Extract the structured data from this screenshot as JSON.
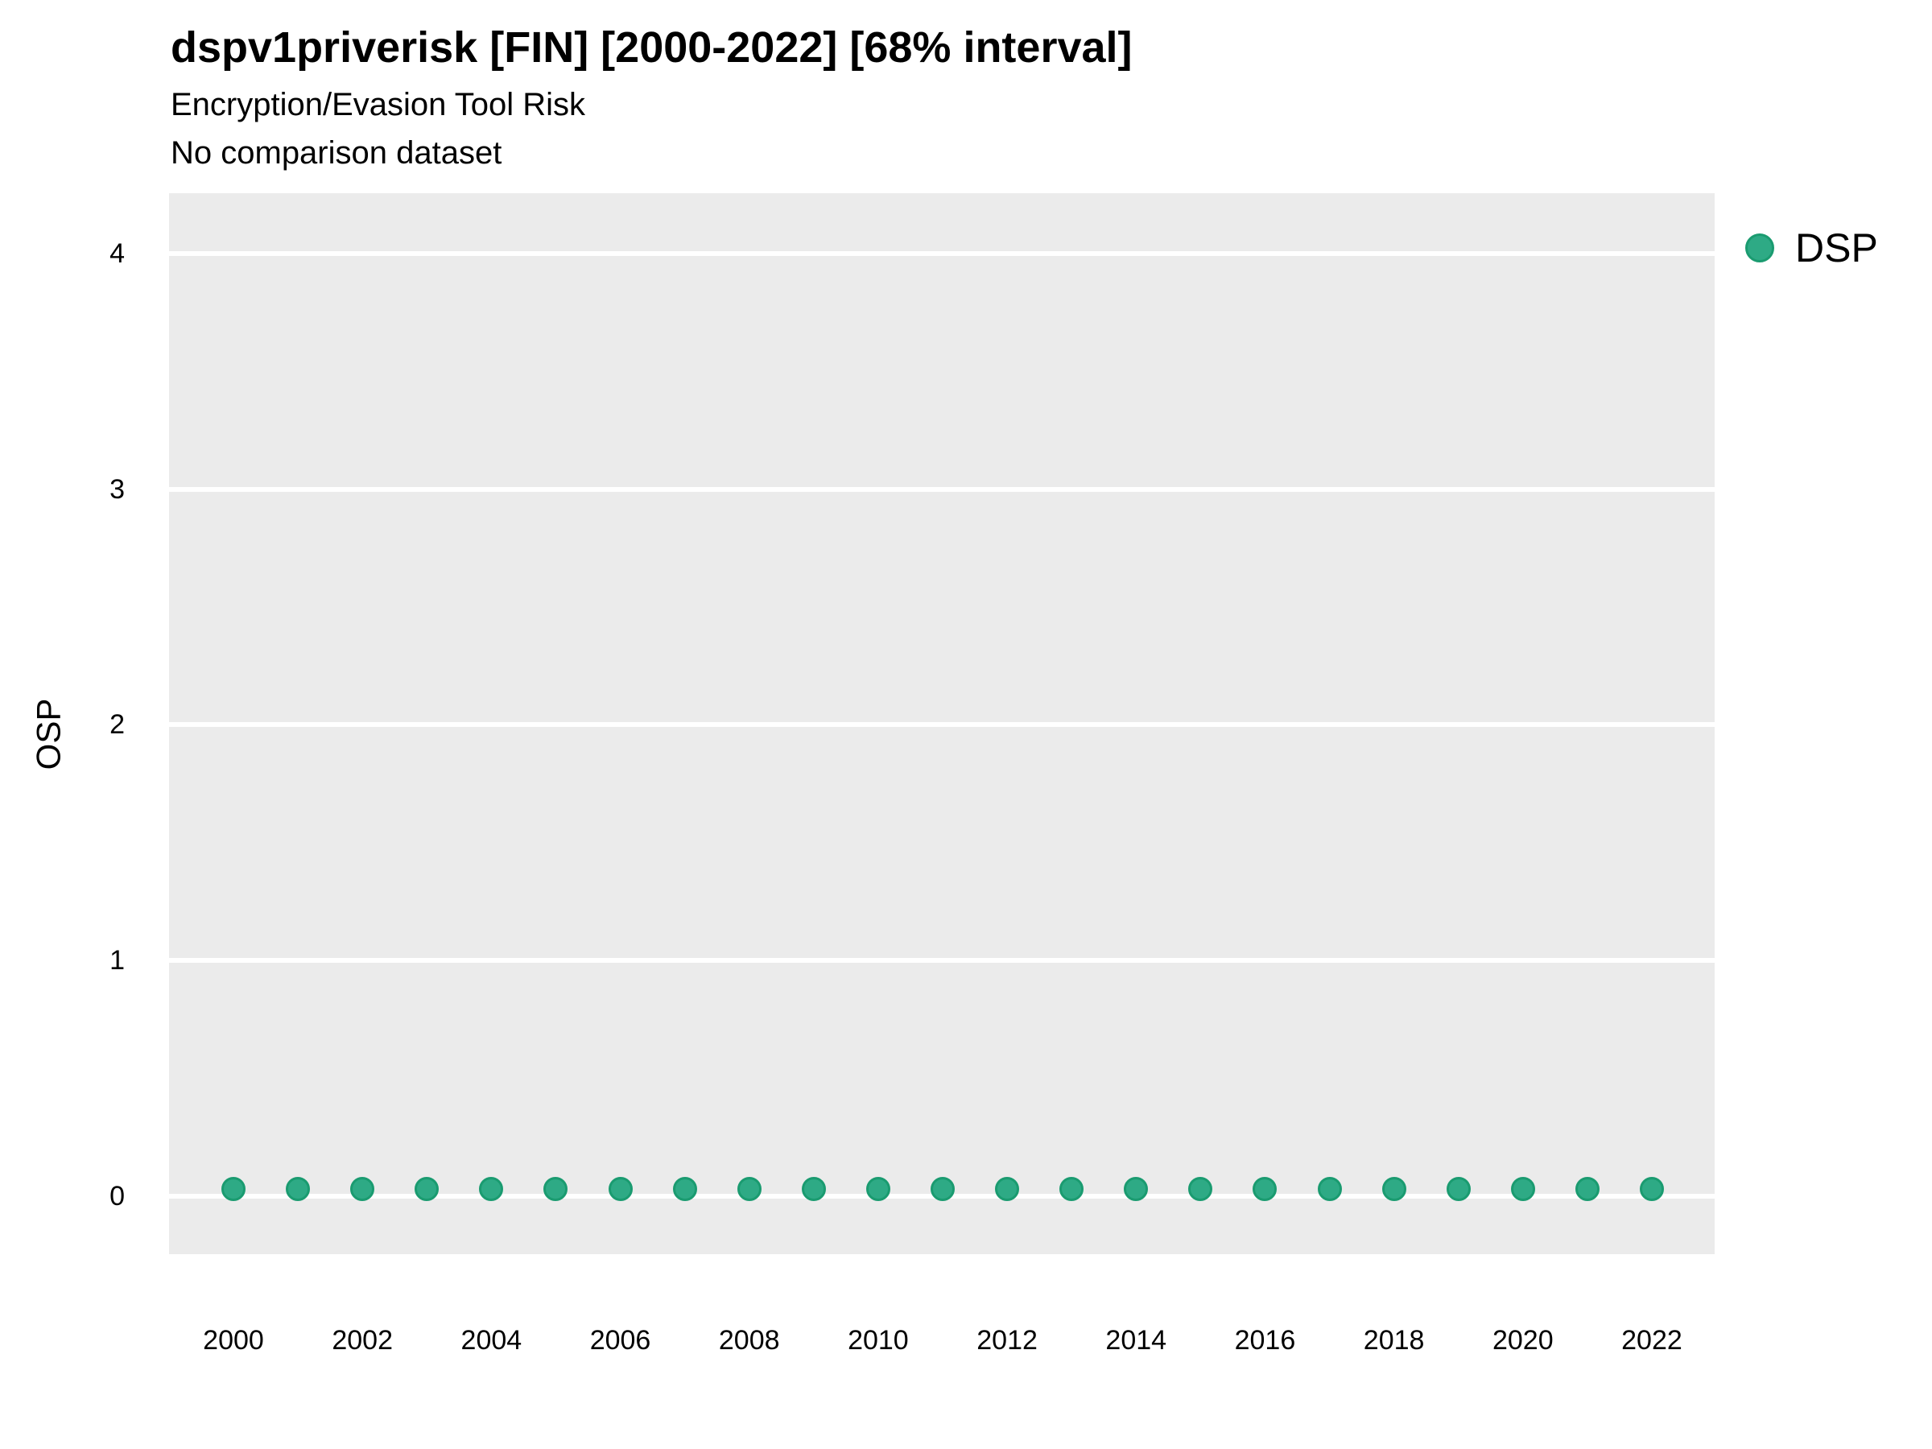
{
  "page": {
    "background": "#FFFFFF"
  },
  "header": {
    "title": "dspv1priverisk [FIN] [2000-2022] [68% interval]",
    "subtitle": "Encryption/Evasion Tool Risk",
    "note": "No comparison dataset"
  },
  "legend": {
    "position": "right",
    "items": [
      {
        "label": "DSP",
        "marker": "circle-icon",
        "fill": "#2EAA85",
        "stroke": "#1A9B70"
      }
    ]
  },
  "colors": {
    "panel_bg": "#EBEBEB",
    "gridline": "#FFFFFF",
    "text": "#000000",
    "point_fill": "#2EAA85",
    "point_stroke": "#1A9B70"
  },
  "chart_data": {
    "type": "scatter",
    "title": "dspv1priverisk [FIN] [2000-2022] [68% interval]",
    "subtitle": "Encryption/Evasion Tool Risk",
    "annotation": "No comparison dataset",
    "xlabel": "",
    "ylabel": "OSP",
    "x_ticks": [
      2000,
      2002,
      2004,
      2006,
      2008,
      2010,
      2012,
      2014,
      2016,
      2018,
      2020,
      2022
    ],
    "y_ticks": [
      0,
      1,
      2,
      3,
      4
    ],
    "xlim": [
      1999,
      2023
    ],
    "ylim": [
      -0.25,
      4.26
    ],
    "grid": {
      "horizontal_major": true,
      "vertical": false,
      "minor": false
    },
    "legend_position": "right",
    "series": [
      {
        "name": "DSP",
        "color": "#2EAA85",
        "x": [
          2000,
          2001,
          2002,
          2003,
          2004,
          2005,
          2006,
          2007,
          2008,
          2009,
          2010,
          2011,
          2012,
          2013,
          2014,
          2015,
          2016,
          2017,
          2018,
          2019,
          2020,
          2021,
          2022
        ],
        "y": [
          0.03,
          0.03,
          0.03,
          0.03,
          0.03,
          0.03,
          0.03,
          0.03,
          0.03,
          0.03,
          0.03,
          0.03,
          0.03,
          0.03,
          0.03,
          0.03,
          0.03,
          0.03,
          0.03,
          0.03,
          0.03,
          0.03,
          0.03
        ]
      }
    ]
  }
}
